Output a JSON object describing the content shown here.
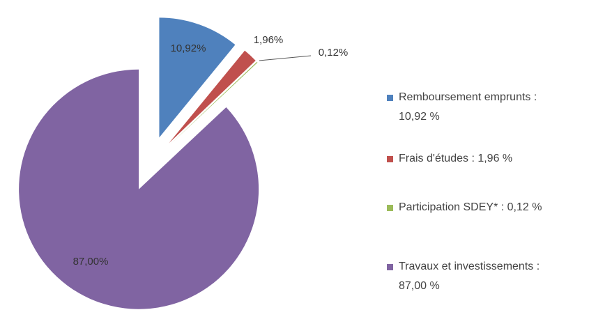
{
  "chart_data": {
    "type": "pie",
    "categories": [
      "Remboursement emprunts :\n10,92 %",
      "Frais d'études : 1,96 %",
      "Participation SDEY* : 0,12 %",
      "Travaux et investissements :\n87,00 %"
    ],
    "values": [
      10.92,
      1.96,
      0.12,
      87.0
    ],
    "value_labels": [
      "10,92%",
      "1,96%",
      "0,12%",
      "87,00%"
    ],
    "colors": [
      "#4f81bd",
      "#c0504d",
      "#9bbb59",
      "#8064a2"
    ],
    "legend": "right"
  }
}
